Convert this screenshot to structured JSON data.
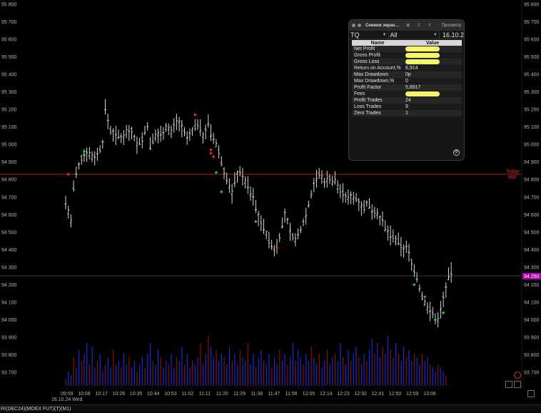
{
  "chart_data": {
    "type": "candlestick",
    "ylim": [
      93610,
      95850
    ],
    "y_ticks": [
      95800,
      95700,
      95600,
      95500,
      95400,
      95300,
      95200,
      95100,
      95000,
      94900,
      94800,
      94700,
      94600,
      94500,
      94400,
      94300,
      94200,
      94100,
      94000,
      93900,
      93800,
      93700
    ],
    "y_tick_labels": [
      "95 800",
      "95 700",
      "95 600",
      "95 500",
      "95 400",
      "95 300",
      "95 200",
      "95 100",
      "95 000",
      "94 900",
      "94 800",
      "94 700",
      "94 600",
      "94 500",
      "94 400",
      "94 300",
      "94 200",
      "94 100",
      "94 000",
      "93 900",
      "93 800",
      "93 700"
    ],
    "x_ticks": [
      "09:59",
      "10:08",
      "10:17",
      "10:26",
      "10:35",
      "10:44",
      "10:53",
      "11:02",
      "11:11",
      "11:20",
      "11:29",
      "11:38",
      "11:47",
      "11:56",
      "12:05",
      "12:14",
      "12:23",
      "12:32",
      "12:41",
      "12:50",
      "12:59",
      "13:08"
    ],
    "date_label": "16.10.24 Wed",
    "today_open_label": "Today",
    "today_open_value_label": "866",
    "today_open_level": 94830,
    "last_price": 94250,
    "last_price_label": "94 250",
    "path": [
      [
        0,
        94670
      ],
      [
        2,
        94560
      ],
      [
        3,
        94750
      ],
      [
        4,
        94830
      ],
      [
        6,
        94920
      ],
      [
        8,
        94960
      ],
      [
        10,
        94930
      ],
      [
        12,
        94940
      ],
      [
        14,
        95010
      ],
      [
        15,
        95200
      ],
      [
        17,
        95080
      ],
      [
        19,
        95050
      ],
      [
        21,
        95040
      ],
      [
        23,
        95070
      ],
      [
        25,
        95080
      ],
      [
        27,
        95000
      ],
      [
        29,
        95030
      ],
      [
        31,
        95110
      ],
      [
        32,
        94990
      ],
      [
        34,
        95050
      ],
      [
        36,
        95060
      ],
      [
        38,
        95100
      ],
      [
        40,
        95070
      ],
      [
        42,
        95140
      ],
      [
        44,
        95100
      ],
      [
        46,
        95030
      ],
      [
        48,
        95080
      ],
      [
        50,
        95120
      ],
      [
        52,
        95050
      ],
      [
        54,
        95120
      ],
      [
        55,
        95060
      ],
      [
        57,
        95000
      ],
      [
        58,
        94960
      ],
      [
        59,
        94900
      ],
      [
        60,
        94850
      ],
      [
        61,
        94800
      ],
      [
        62,
        94760
      ],
      [
        63,
        94720
      ],
      [
        64,
        94790
      ],
      [
        65,
        94830
      ],
      [
        66,
        94850
      ],
      [
        67,
        94810
      ],
      [
        68,
        94790
      ],
      [
        69,
        94760
      ],
      [
        70,
        94720
      ],
      [
        71,
        94700
      ],
      [
        72,
        94640
      ],
      [
        73,
        94590
      ],
      [
        74,
        94560
      ],
      [
        75,
        94520
      ],
      [
        76,
        94490
      ],
      [
        77,
        94450
      ],
      [
        78,
        94420
      ],
      [
        79,
        94400
      ],
      [
        80,
        94420
      ],
      [
        81,
        94480
      ],
      [
        82,
        94540
      ],
      [
        83,
        94600
      ],
      [
        84,
        94560
      ],
      [
        85,
        94500
      ],
      [
        86,
        94480
      ],
      [
        87,
        94450
      ],
      [
        88,
        94480
      ],
      [
        89,
        94520
      ],
      [
        90,
        94560
      ],
      [
        91,
        94600
      ],
      [
        92,
        94660
      ],
      [
        93,
        94720
      ],
      [
        94,
        94780
      ],
      [
        95,
        94800
      ],
      [
        96,
        94830
      ],
      [
        97,
        94810
      ],
      [
        98,
        94790
      ],
      [
        99,
        94800
      ],
      [
        100,
        94810
      ],
      [
        101,
        94790
      ],
      [
        102,
        94800
      ],
      [
        103,
        94760
      ],
      [
        104,
        94740
      ],
      [
        105,
        94720
      ],
      [
        106,
        94700
      ],
      [
        107,
        94690
      ],
      [
        108,
        94710
      ],
      [
        109,
        94700
      ],
      [
        110,
        94690
      ],
      [
        111,
        94680
      ],
      [
        112,
        94650
      ],
      [
        113,
        94640
      ],
      [
        114,
        94660
      ],
      [
        115,
        94650
      ],
      [
        116,
        94630
      ],
      [
        117,
        94620
      ],
      [
        118,
        94610
      ],
      [
        119,
        94580
      ],
      [
        120,
        94560
      ],
      [
        121,
        94520
      ],
      [
        122,
        94500
      ],
      [
        123,
        94480
      ],
      [
        124,
        94470
      ],
      [
        125,
        94450
      ],
      [
        126,
        94440
      ],
      [
        127,
        94420
      ],
      [
        128,
        94400
      ],
      [
        129,
        94410
      ],
      [
        130,
        94380
      ],
      [
        131,
        94330
      ],
      [
        132,
        94280
      ],
      [
        133,
        94240
      ],
      [
        134,
        94180
      ],
      [
        135,
        94130
      ],
      [
        136,
        94100
      ],
      [
        137,
        94070
      ],
      [
        138,
        94050
      ],
      [
        139,
        94030
      ],
      [
        140,
        94010
      ],
      [
        141,
        94000
      ],
      [
        142,
        94060
      ],
      [
        143,
        94120
      ],
      [
        144,
        94180
      ],
      [
        145,
        94240
      ],
      [
        146,
        94270
      ]
    ],
    "volume": [
      2,
      4,
      3,
      8,
      5,
      10,
      7,
      9,
      12,
      6,
      11,
      5,
      7,
      9,
      4,
      6,
      8,
      5,
      10,
      6,
      7,
      5,
      9,
      6,
      8,
      5,
      7,
      4,
      6,
      8,
      5,
      9,
      12,
      7,
      6,
      10,
      8,
      5,
      7,
      6,
      9,
      5,
      8,
      7,
      11,
      6,
      9,
      5,
      7,
      6,
      8,
      12,
      6,
      9,
      14,
      11,
      8,
      10,
      7,
      9,
      8,
      6,
      11,
      7,
      9,
      6,
      10,
      8,
      7,
      12,
      6,
      9,
      5,
      8,
      10,
      7,
      6,
      9,
      5,
      8,
      6,
      10,
      7,
      9,
      6,
      8,
      12,
      7,
      10,
      8,
      6,
      9,
      7,
      11,
      8,
      6,
      9,
      5,
      7,
      10,
      6,
      8,
      9,
      7,
      12,
      8,
      6,
      10,
      7,
      9,
      11,
      8,
      6,
      9,
      7,
      10,
      13,
      9,
      12,
      8,
      11,
      9,
      14,
      10,
      8,
      12,
      9,
      7,
      11,
      8,
      10,
      7,
      9,
      8,
      6,
      9,
      7,
      8,
      6,
      5,
      4,
      6,
      5,
      4,
      3
    ],
    "trade_markers": [
      {
        "t": 1,
        "p": 94830,
        "side": "sell"
      },
      {
        "t": 7,
        "p": 94960,
        "side": "buy"
      },
      {
        "t": 7,
        "p": 94940,
        "side": "buy"
      },
      {
        "t": 49,
        "p": 95170,
        "side": "sell"
      },
      {
        "t": 55,
        "p": 94970,
        "side": "sell"
      },
      {
        "t": 55,
        "p": 94950,
        "side": "sell"
      },
      {
        "t": 56,
        "p": 94930,
        "side": "sell"
      },
      {
        "t": 57,
        "p": 94840,
        "side": "buy"
      },
      {
        "t": 59,
        "p": 94730,
        "side": "buy"
      },
      {
        "t": 72,
        "p": 94560,
        "side": "buy"
      },
      {
        "t": 80,
        "p": 94410,
        "side": "sell"
      },
      {
        "t": 132,
        "p": 94200,
        "side": "buy"
      },
      {
        "t": 136,
        "p": 94130,
        "side": "buy"
      },
      {
        "t": 140,
        "p": 94000,
        "side": "buy"
      },
      {
        "t": 143,
        "p": 94040,
        "side": "buy"
      }
    ]
  },
  "colors": {
    "background": "#000000",
    "bar": "#d6d6d6",
    "today_line": "#b01e1e",
    "today_text": "#e03030",
    "last_price_line": "#3a3a3a",
    "last_price_badge": "#b000b0",
    "buy_marker": "#22dd44",
    "sell_marker": "#ff3030",
    "volume_blue": "#1a2bd0",
    "volume_red": "#8a1010",
    "highlight": "#f5f56a"
  },
  "footer": {
    "instrument": "RI(DEC24)(MOEX FUT)(T)(M1)"
  },
  "widget": {
    "title": "Снимок экран…",
    "view_label": "Просмотр",
    "board": "TQ",
    "filter": "All",
    "date": "16.10.2",
    "header_name": "Name",
    "header_value": "Value",
    "rows": [
      {
        "name": "Net Profit",
        "value": "",
        "highlight": true
      },
      {
        "name": "Gross Profit",
        "value": "",
        "highlight": true
      },
      {
        "name": "Gross Loss",
        "value": "",
        "highlight": true
      },
      {
        "name": "Return on Account,%",
        "value": "6,914",
        "highlight": false
      },
      {
        "name": "Max Drawdown",
        "value": "0р",
        "highlight": false
      },
      {
        "name": "Max Drawdown,%",
        "value": "0",
        "highlight": false
      },
      {
        "name": "Profit Factor",
        "value": "5,8917",
        "highlight": false
      },
      {
        "name": "Fees",
        "value": "",
        "highlight": true
      },
      {
        "name": "Profit Trades",
        "value": "24",
        "highlight": false
      },
      {
        "name": "Loss Trades",
        "value": "9",
        "highlight": false
      },
      {
        "name": "Zero Trades",
        "value": "1",
        "highlight": false
      }
    ]
  },
  "icons": {
    "widget_close": "close-dot-icon",
    "widget_minimize": "minimize-dot-icon",
    "widget_add": "plus-icon",
    "widget_share": "share-icon",
    "widget_export": "export-icon",
    "widget_bottom": "settings-icon",
    "chart_corner_1": "grid-icon",
    "chart_corner_2": "resize-icon",
    "chart_pin": "no-entry-icon"
  }
}
